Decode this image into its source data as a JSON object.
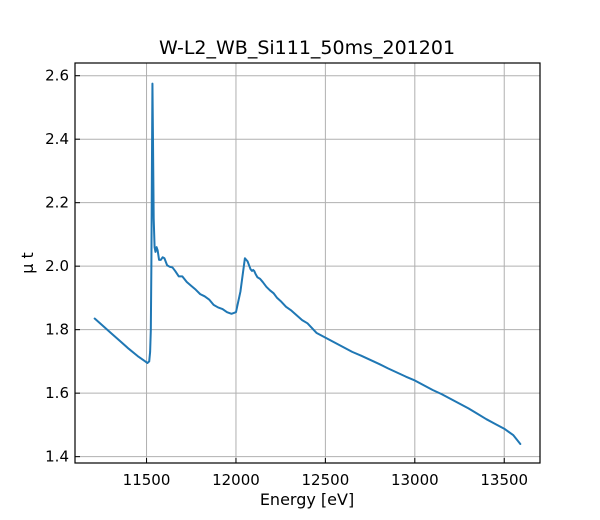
{
  "chart_data": {
    "type": "line",
    "title": "W-L2_WB_Si111_50ms_201201",
    "xlabel": "Energy [eV]",
    "ylabel": "μ t",
    "xlim": [
      11100,
      13700
    ],
    "ylim": [
      1.38,
      2.64
    ],
    "xticks": [
      11500,
      12000,
      12500,
      13000,
      13500
    ],
    "yticks": [
      1.4,
      1.6,
      1.8,
      2.0,
      2.2,
      2.4,
      2.6
    ],
    "xtick_labels": [
      "11500",
      "12000",
      "12500",
      "13000",
      "13500"
    ],
    "ytick_labels": [
      "1.4",
      "1.6",
      "1.8",
      "2.0",
      "2.2",
      "2.4",
      "2.6"
    ],
    "grid": true,
    "series": [
      {
        "color": "#1f77b4",
        "x": [
          11210,
          11250,
          11300,
          11350,
          11400,
          11450,
          11490,
          11505,
          11515,
          11520,
          11524,
          11527,
          11530,
          11533,
          11536,
          11540,
          11545,
          11550,
          11556,
          11562,
          11570,
          11580,
          11590,
          11600,
          11615,
          11630,
          11645,
          11660,
          11680,
          11700,
          11725,
          11750,
          11775,
          11800,
          11825,
          11850,
          11875,
          11900,
          11925,
          11950,
          11975,
          12000,
          12025,
          12050,
          12065,
          12075,
          12082,
          12090,
          12096,
          12102,
          12110,
          12120,
          12135,
          12150,
          12170,
          12190,
          12210,
          12230,
          12250,
          12280,
          12310,
          12340,
          12370,
          12400,
          12450,
          12500,
          12550,
          12600,
          12650,
          12700,
          12750,
          12800,
          12850,
          12900,
          12950,
          13000,
          13050,
          13100,
          13150,
          13200,
          13250,
          13300,
          13350,
          13400,
          13450,
          13500,
          13550,
          13590
        ],
        "y": [
          1.835,
          1.815,
          1.79,
          1.765,
          1.74,
          1.717,
          1.701,
          1.695,
          1.7,
          1.73,
          1.8,
          2.0,
          2.3,
          2.575,
          2.4,
          2.15,
          2.06,
          2.045,
          2.06,
          2.05,
          2.02,
          2.02,
          2.028,
          2.025,
          2.003,
          1.998,
          1.996,
          1.985,
          1.968,
          1.968,
          1.95,
          1.938,
          1.926,
          1.912,
          1.905,
          1.895,
          1.878,
          1.87,
          1.865,
          1.855,
          1.85,
          1.855,
          1.92,
          2.025,
          2.015,
          2.0,
          1.99,
          1.985,
          1.988,
          1.985,
          1.975,
          1.965,
          1.96,
          1.95,
          1.935,
          1.924,
          1.915,
          1.9,
          1.89,
          1.872,
          1.86,
          1.845,
          1.83,
          1.82,
          1.79,
          1.775,
          1.76,
          1.745,
          1.73,
          1.718,
          1.705,
          1.692,
          1.678,
          1.665,
          1.652,
          1.64,
          1.625,
          1.61,
          1.597,
          1.582,
          1.567,
          1.552,
          1.535,
          1.518,
          1.503,
          1.488,
          1.468,
          1.44
        ]
      }
    ]
  }
}
